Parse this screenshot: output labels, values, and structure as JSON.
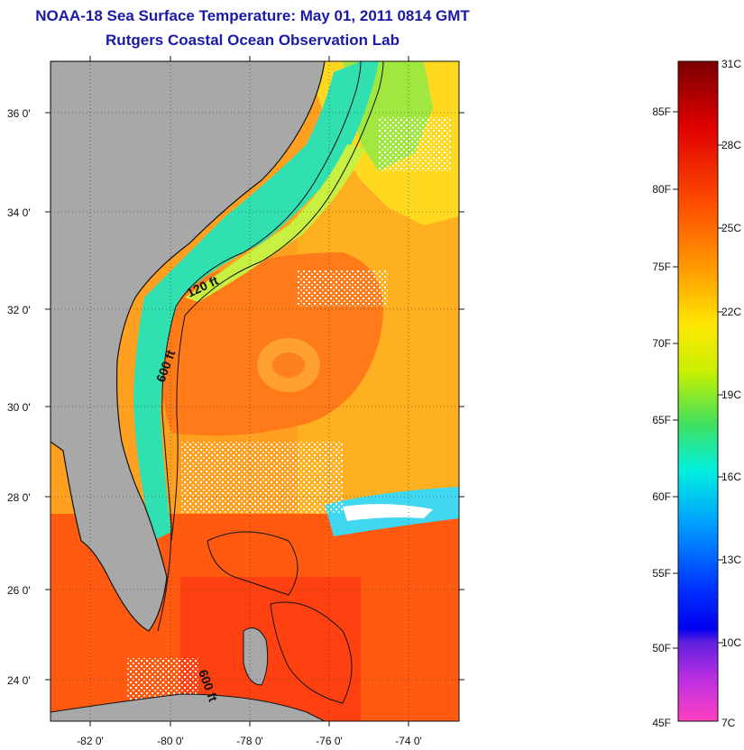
{
  "header": {
    "title": "NOAA-18 Sea Surface Temperature:  May 01, 2011 0814 GMT",
    "subtitle": "Rutgers Coastal Ocean Observation Lab"
  },
  "map": {
    "lon_ticks": [
      "-82 0'",
      "-80 0'",
      "-78 0'",
      "-76 0'",
      "-74 0'"
    ],
    "lat_ticks": [
      "36 0'",
      "34 0'",
      "32 0'",
      "30 0'",
      "28 0'",
      "26 0'",
      "24 0'"
    ],
    "contour_labels": [
      "120 ft",
      "600 ft",
      "600 ft"
    ],
    "colors": {
      "land": "#a8a8a8",
      "warm_ocean": "#ff6a10",
      "gulf_stream_core": "#ff5010",
      "shelf_water": "#28e0a0",
      "cloud": "#ffffff"
    }
  },
  "colorbar": {
    "fahrenheit_labels": [
      "85F",
      "80F",
      "75F",
      "70F",
      "65F",
      "60F",
      "55F",
      "50F",
      "45F"
    ],
    "celsius_labels": [
      "31C",
      "28C",
      "25C",
      "22C",
      "19C",
      "16C",
      "13C",
      "10C",
      "7C"
    ]
  }
}
